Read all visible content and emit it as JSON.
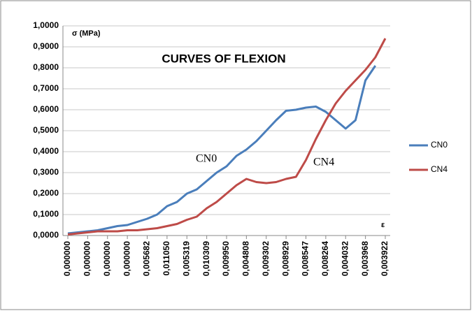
{
  "chart_data": {
    "type": "line",
    "title": "CURVES OF FLEXION",
    "y_label": "σ (MPa)",
    "x_label": "ε",
    "annotations": [
      "CN0",
      "CN4"
    ],
    "categories": [
      "0,000000",
      null,
      "0,000000",
      null,
      "0,000000",
      null,
      "0,000000",
      null,
      "0,005682",
      null,
      "0,011050",
      null,
      "0,005319",
      null,
      "0,010309",
      null,
      "0,009950",
      null,
      "0,004808",
      null,
      "0,009302",
      null,
      "0,008929",
      null,
      "0,008547",
      null,
      "0,008264",
      null,
      "0,004032",
      null,
      "0,003968",
      null,
      "0,003922"
    ],
    "series": [
      {
        "name": "CN0",
        "color": "#4a7ebb",
        "values": [
          0.01,
          0.015,
          0.02,
          0.025,
          0.035,
          0.045,
          0.05,
          0.065,
          0.08,
          0.1,
          0.14,
          0.16,
          0.2,
          0.22,
          0.26,
          0.3,
          0.33,
          0.38,
          0.41,
          0.45,
          0.5,
          0.55,
          0.595,
          0.6,
          0.61,
          0.615,
          0.59,
          0.55,
          0.51,
          0.55,
          0.74,
          0.81,
          null
        ]
      },
      {
        "name": "CN4",
        "color": "#be4b48",
        "values": [
          0.005,
          0.01,
          0.015,
          0.02,
          0.02,
          0.02,
          0.025,
          0.025,
          0.03,
          0.035,
          0.045,
          0.055,
          0.075,
          0.09,
          0.13,
          0.16,
          0.2,
          0.24,
          0.27,
          0.255,
          0.25,
          0.255,
          0.27,
          0.28,
          0.36,
          0.46,
          0.55,
          0.63,
          0.69,
          0.74,
          0.79,
          0.85,
          0.94
        ]
      }
    ],
    "ylim": [
      0,
      1
    ],
    "yticks": [
      {
        "value": 0,
        "label": "0,0000"
      },
      {
        "value": 0.1,
        "label": "0,1000"
      },
      {
        "value": 0.2,
        "label": "0,2000"
      },
      {
        "value": 0.3,
        "label": "0,3000"
      },
      {
        "value": 0.4,
        "label": "0,4000"
      },
      {
        "value": 0.5,
        "label": "0,5000"
      },
      {
        "value": 0.6,
        "label": "0,6000"
      },
      {
        "value": 0.7,
        "label": "0,7000"
      },
      {
        "value": 0.8,
        "label": "0,8000"
      },
      {
        "value": 0.9,
        "label": "0,9000"
      },
      {
        "value": 1,
        "label": "1,0000"
      }
    ],
    "grid": true,
    "legend": "right"
  }
}
